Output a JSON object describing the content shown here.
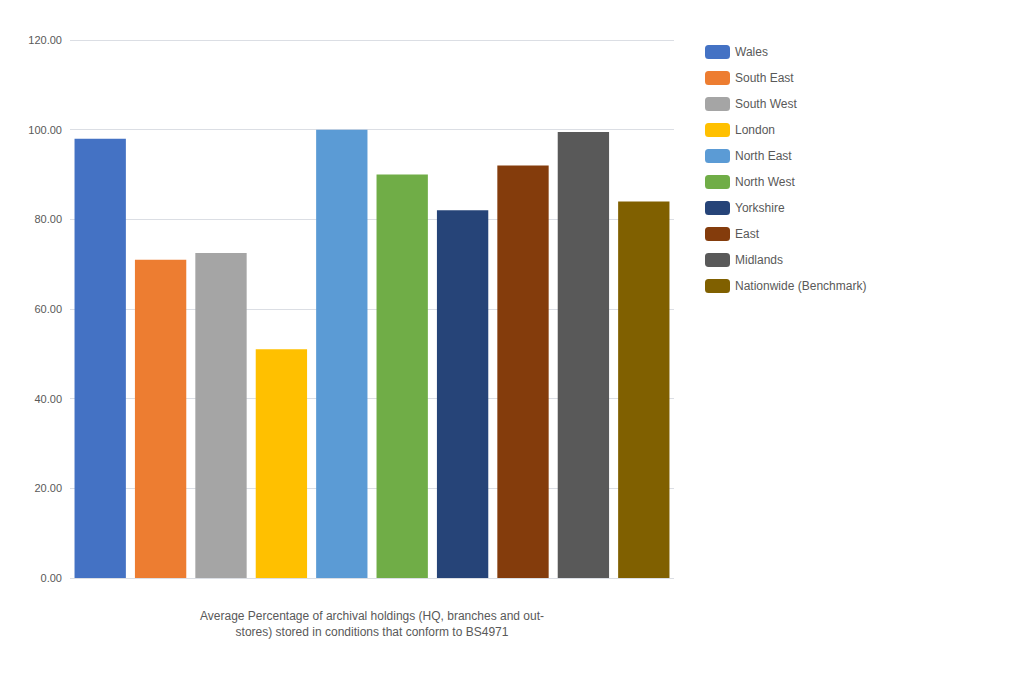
{
  "chart_data": {
    "type": "bar",
    "xlabel": "Average Percentage of archival holdings (HQ, branches and out-\nstores) stored in conditions that conform to BS4971",
    "categories": [
      "Wales",
      "South East",
      "South West",
      "London",
      "North East",
      "North West",
      "Yorkshire",
      "East",
      "Midlands",
      "Nationwide (Benchmark)"
    ],
    "values": [
      98.0,
      71.0,
      72.5,
      51.0,
      100.0,
      90.0,
      82.0,
      92.0,
      99.5,
      84.0
    ],
    "colors": [
      "#4472C4",
      "#ED7D31",
      "#A5A5A5",
      "#FFC000",
      "#5B9BD5",
      "#70AD47",
      "#264478",
      "#843C0C",
      "#595959",
      "#806000"
    ],
    "ylim": [
      0,
      120
    ],
    "yticks": [
      {
        "value": 0,
        "label": "0.00"
      },
      {
        "value": 20,
        "label": "20.00"
      },
      {
        "value": 40,
        "label": "40.00"
      },
      {
        "value": 60,
        "label": "60.00"
      },
      {
        "value": 80,
        "label": "80.00"
      },
      {
        "value": 100,
        "label": "100.00"
      },
      {
        "value": 120,
        "label": "120.00"
      }
    ],
    "grid": true,
    "legend": "right",
    "tick_labels": "y"
  }
}
